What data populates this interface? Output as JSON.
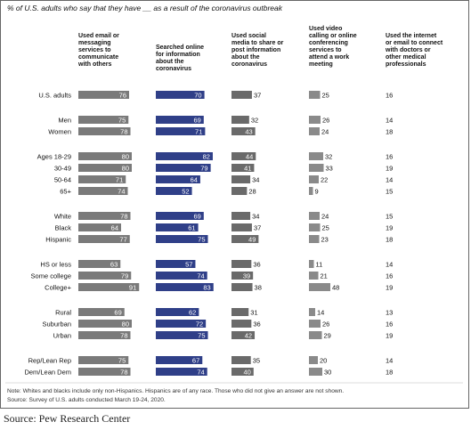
{
  "chart_data": {
    "type": "bar",
    "title": "% of U.S. adults who say that they have __ as a result of the coronavirus outbreak",
    "columns": [
      "Used email or messaging services to communicate with others",
      "Searched online for information about the coronavirus",
      "Used social media to share or post information about the coronavirus",
      "Used video calling or online conferencing services to attend a work meeting",
      "Used the internet or email to connect with doctors or other medical professionals"
    ],
    "rows": [
      {
        "label": "U.S. adults",
        "values": [
          76,
          70,
          37,
          25,
          16
        ]
      },
      {
        "label": "Men",
        "values": [
          75,
          69,
          32,
          26,
          14
        ]
      },
      {
        "label": "Women",
        "values": [
          78,
          71,
          43,
          24,
          18
        ]
      },
      {
        "label": "Ages 18-29",
        "values": [
          80,
          82,
          44,
          32,
          16
        ]
      },
      {
        "label": "30-49",
        "values": [
          80,
          79,
          41,
          33,
          19
        ]
      },
      {
        "label": "50-64",
        "values": [
          71,
          64,
          34,
          22,
          14
        ]
      },
      {
        "label": "65+",
        "values": [
          74,
          52,
          28,
          9,
          15
        ]
      },
      {
        "label": "White",
        "values": [
          78,
          69,
          34,
          24,
          15
        ]
      },
      {
        "label": "Black",
        "values": [
          64,
          61,
          37,
          25,
          19
        ]
      },
      {
        "label": "Hispanic",
        "values": [
          77,
          75,
          49,
          23,
          18
        ]
      },
      {
        "label": "HS or less",
        "values": [
          63,
          57,
          36,
          11,
          14
        ]
      },
      {
        "label": "Some college",
        "values": [
          79,
          74,
          39,
          21,
          16
        ]
      },
      {
        "label": "College+",
        "values": [
          91,
          83,
          38,
          48,
          19
        ]
      },
      {
        "label": "Rural",
        "values": [
          69,
          62,
          31,
          14,
          13
        ]
      },
      {
        "label": "Suburban",
        "values": [
          80,
          72,
          36,
          26,
          16
        ]
      },
      {
        "label": "Urban",
        "values": [
          78,
          75,
          42,
          29,
          19
        ]
      },
      {
        "label": "Rep/Lean Rep",
        "values": [
          75,
          67,
          35,
          20,
          14
        ]
      },
      {
        "label": "Dem/Lean Dem",
        "values": [
          78,
          74,
          40,
          30,
          18
        ]
      }
    ],
    "note": "Note: Whites and blacks include only non-Hispanics. Hispanics are of any race. Those who did not give an answer are not shown.",
    "source": "Source: Survey of U.S. adults conducted March 19-24, 2020.",
    "colors": {
      "email": "#7a7a7a",
      "search": "#2f3f88",
      "social": "#6a6a6a",
      "video": "#8a8a8a",
      "text": "#111111"
    }
  },
  "caption": "Source: Pew Research Center"
}
